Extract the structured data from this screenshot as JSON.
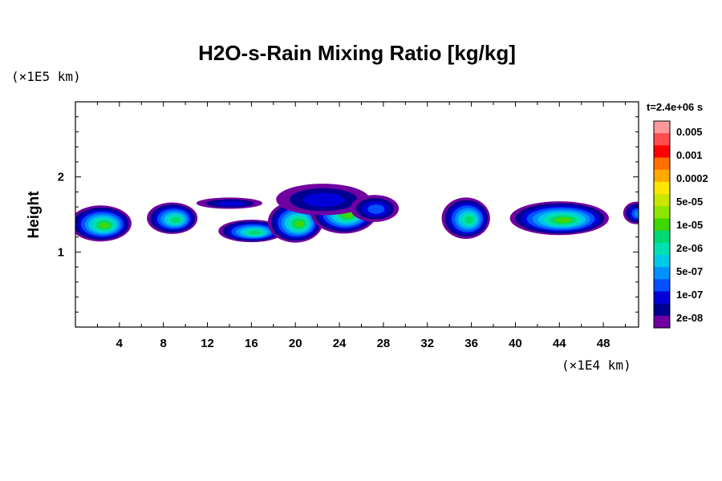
{
  "chart_data": {
    "type": "heatmap",
    "title": "H2O-s-Rain Mixing Ratio [kg/kg]",
    "ylabel": "Height",
    "xlabel": "",
    "x_unit": "(×1E4 km)",
    "y_unit": "(×1E5 km)",
    "time_label": "t=2.4e+06 s",
    "xlim": [
      0,
      51.2
    ],
    "ylim": [
      0,
      3.0
    ],
    "x_ticks": [
      4,
      8,
      12,
      16,
      20,
      24,
      28,
      32,
      36,
      40,
      44,
      48
    ],
    "y_ticks": [
      1,
      2
    ],
    "grid": false,
    "colorbar": {
      "labels": [
        "0.005",
        "0.001",
        "0.0002",
        "5e-05",
        "1e-05",
        "2e-06",
        "5e-07",
        "1e-07",
        "2e-08"
      ],
      "colors": [
        "#ff9a9a",
        "#ff4d4d",
        "#ff0000",
        "#ff7000",
        "#ffaa00",
        "#ffe600",
        "#c8e600",
        "#8ee600",
        "#3cd800",
        "#00d870",
        "#00e0b0",
        "#00c8e8",
        "#0090ff",
        "#0050ff",
        "#0000d8",
        "#000090",
        "#7000a0"
      ]
    },
    "cloud_cells": [
      {
        "x": 2.3,
        "y": 1.38,
        "width": 5.6,
        "height": 0.48,
        "level": 8
      },
      {
        "x": 8.8,
        "y": 1.45,
        "width": 4.6,
        "height": 0.42,
        "level": 7
      },
      {
        "x": 16.0,
        "y": 1.28,
        "width": 6.0,
        "height": 0.3,
        "level": 7
      },
      {
        "x": 20.0,
        "y": 1.4,
        "width": 5.0,
        "height": 0.55,
        "level": 8
      },
      {
        "x": 24.4,
        "y": 1.52,
        "width": 6.0,
        "height": 0.55,
        "level": 8
      },
      {
        "x": 22.5,
        "y": 1.7,
        "width": 8.5,
        "height": 0.42,
        "level": 2
      },
      {
        "x": 14.0,
        "y": 1.65,
        "width": 6.0,
        "height": 0.15,
        "level": 2
      },
      {
        "x": 27.2,
        "y": 1.58,
        "width": 4.4,
        "height": 0.36,
        "level": 3
      },
      {
        "x": 35.5,
        "y": 1.45,
        "width": 4.4,
        "height": 0.55,
        "level": 7
      },
      {
        "x": 44.0,
        "y": 1.45,
        "width": 9.0,
        "height": 0.45,
        "level": 8
      },
      {
        "x": 51.0,
        "y": 1.52,
        "width": 2.4,
        "height": 0.3,
        "level": 4
      }
    ]
  }
}
